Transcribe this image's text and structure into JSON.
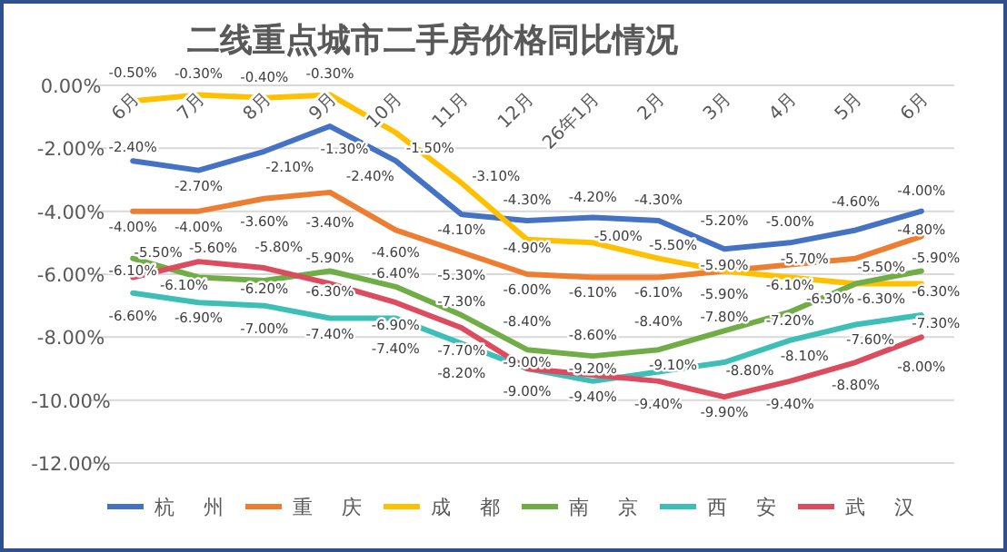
{
  "chart_data": {
    "type": "line",
    "title": "二线重点城市二手房价格同比情况",
    "categories": [
      "6月",
      "7月",
      "8月",
      "9月",
      "10月",
      "11月",
      "12月",
      "26年1月",
      "2月",
      "3月",
      "4月",
      "5月",
      "6月"
    ],
    "series": [
      {
        "name": "杭州",
        "color": "#4472c4",
        "values": [
          -2.4,
          -2.7,
          -2.1,
          -1.3,
          -2.4,
          -4.1,
          -4.3,
          -4.2,
          -4.3,
          -5.2,
          -5.0,
          -4.6,
          -4.0
        ],
        "value_labels": [
          "-2.40%",
          "-2.70%",
          "-2.10%",
          "-1.30%",
          "-2.40%",
          "-4.10%",
          "-4.30%",
          "-4.20%",
          "-4.30%",
          "-5.20%",
          "-5.00%",
          "-4.60%",
          "-4.00%"
        ]
      },
      {
        "name": "重庆",
        "color": "#ed7d31",
        "values": [
          -4.0,
          -4.0,
          -3.6,
          -3.4,
          -4.6,
          -5.3,
          -6.0,
          -6.1,
          -6.1,
          -5.9,
          -5.7,
          -5.5,
          -4.8
        ],
        "value_labels": [
          "-4.00%",
          "-4.00%",
          "-3.60%",
          "-3.40%",
          "-4.60%",
          "-5.30%",
          "-6.00%",
          "-6.10%",
          "-6.10%",
          "-5.90%",
          "-5.70%",
          "-5.50%",
          "-4.80%"
        ]
      },
      {
        "name": "成都",
        "color": "#ffc000",
        "values": [
          -0.5,
          -0.3,
          -0.4,
          -0.3,
          -1.5,
          -3.1,
          -4.9,
          -5.0,
          -5.5,
          -5.9,
          -6.1,
          -6.3,
          -6.3
        ],
        "value_labels": [
          "-0.50%",
          "-0.30%",
          "-0.40%",
          "-0.30%",
          "-1.50%",
          "-3.10%",
          "-4.90%",
          "-5.00%",
          "-5.50%",
          "-5.90%",
          "-6.10%",
          "-6.30%",
          "-6.30%"
        ]
      },
      {
        "name": "南京",
        "color": "#70ad47",
        "values": [
          -5.5,
          -6.1,
          -6.2,
          -5.9,
          -6.4,
          -7.3,
          -8.4,
          -8.6,
          -8.4,
          -7.8,
          -7.2,
          -6.3,
          -5.9
        ],
        "value_labels": [
          "-5.50%",
          "-6.10%",
          "-6.20%",
          "-5.90%",
          "-6.40%",
          "-7.30%",
          "-8.40%",
          "-8.60%",
          "-8.40%",
          "-7.80%",
          "-7.20%",
          "-6.30%",
          "-5.90%"
        ]
      },
      {
        "name": "西安",
        "color": "#3dbfb8",
        "values": [
          -6.6,
          -6.9,
          -7.0,
          -7.4,
          -7.4,
          -8.2,
          -9.0,
          -9.4,
          -9.1,
          -8.8,
          -8.1,
          -7.6,
          -7.3
        ],
        "value_labels": [
          "-6.60%",
          "-6.90%",
          "-7.00%",
          "-7.40%",
          "-7.40%",
          "-8.20%",
          "-9.00%",
          "-9.40%",
          "-9.10%",
          "-8.80%",
          "-8.10%",
          "-7.60%",
          "-7.30%"
        ]
      },
      {
        "name": "武汉",
        "color": "#dc4b5e",
        "values": [
          -6.1,
          -5.6,
          -5.8,
          -6.3,
          -6.9,
          -7.7,
          -9.0,
          -9.2,
          -9.4,
          -9.9,
          -9.4,
          -8.8,
          -8.0
        ],
        "value_labels": [
          "-6.10%",
          "-5.60%",
          "-5.80%",
          "-6.30%",
          "-6.90%",
          "-7.70%",
          "-9.00%",
          "-9.20%",
          "-9.40%",
          "-9.90%",
          "-9.40%",
          "-8.80%",
          "-8.00%"
        ]
      }
    ],
    "ylim": [
      -12,
      0
    ],
    "yticks": [
      {
        "value": 0,
        "label": "0.00%"
      },
      {
        "value": -2,
        "label": "-2.00%"
      },
      {
        "value": -4,
        "label": "-4.00%"
      },
      {
        "value": -6,
        "label": "-6.00%"
      },
      {
        "value": -8,
        "label": "-8.00%"
      },
      {
        "value": -10,
        "label": "-10.00%"
      },
      {
        "value": -12,
        "label": "-12.00%"
      }
    ],
    "grid": "y",
    "legend": "bottom",
    "marker": "none",
    "line_style": "solid"
  }
}
